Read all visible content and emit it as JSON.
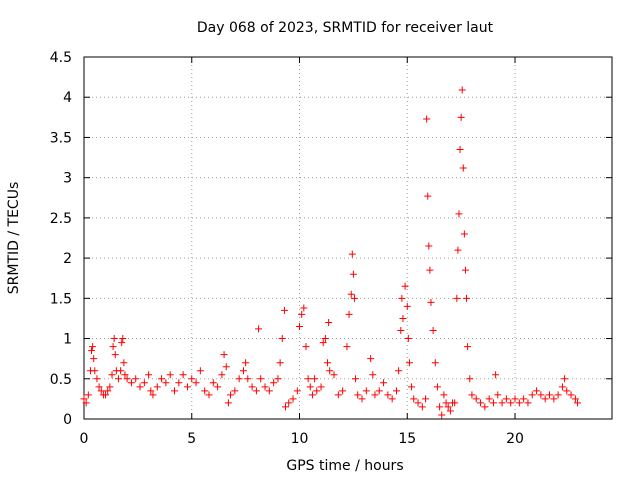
{
  "chart_data": {
    "type": "scatter",
    "title": "Day 068 of 2023, SRMTID for receiver laut",
    "xlabel": "GPS time / hours",
    "ylabel": "SRMTID / TECUs",
    "xlim": [
      0,
      24.5
    ],
    "ylim": [
      0,
      4.5
    ],
    "x_ticks": [
      0,
      5,
      10,
      15,
      20
    ],
    "x_tick_labels": [
      "0",
      "5",
      "10",
      "15",
      "20"
    ],
    "y_ticks": [
      0,
      0.5,
      1,
      1.5,
      2,
      2.5,
      3,
      3.5,
      4,
      4.5
    ],
    "y_tick_labels": [
      "0",
      "0.5",
      "1",
      "1.5",
      "2",
      "2.5",
      "3",
      "3.5",
      "4",
      "4.5"
    ],
    "grid": true,
    "marker": "plus",
    "color": "#ff0000",
    "series": [
      {
        "name": "SRMTID",
        "points": [
          [
            0.0,
            0.25
          ],
          [
            0.1,
            0.2
          ],
          [
            0.2,
            0.3
          ],
          [
            0.3,
            0.6
          ],
          [
            0.35,
            0.85
          ],
          [
            0.4,
            0.9
          ],
          [
            0.45,
            0.75
          ],
          [
            0.5,
            0.6
          ],
          [
            0.6,
            0.5
          ],
          [
            0.7,
            0.4
          ],
          [
            0.8,
            0.35
          ],
          [
            0.9,
            0.3
          ],
          [
            1.0,
            0.3
          ],
          [
            1.1,
            0.35
          ],
          [
            1.2,
            0.4
          ],
          [
            1.3,
            0.55
          ],
          [
            1.35,
            0.9
          ],
          [
            1.4,
            1.0
          ],
          [
            1.45,
            0.8
          ],
          [
            1.5,
            0.6
          ],
          [
            1.6,
            0.5
          ],
          [
            1.7,
            0.6
          ],
          [
            1.75,
            0.95
          ],
          [
            1.8,
            1.0
          ],
          [
            1.85,
            0.7
          ],
          [
            1.9,
            0.55
          ],
          [
            2.0,
            0.5
          ],
          [
            2.2,
            0.45
          ],
          [
            2.4,
            0.5
          ],
          [
            2.6,
            0.4
          ],
          [
            2.8,
            0.45
          ],
          [
            3.0,
            0.55
          ],
          [
            3.1,
            0.35
          ],
          [
            3.2,
            0.3
          ],
          [
            3.4,
            0.4
          ],
          [
            3.6,
            0.5
          ],
          [
            3.8,
            0.45
          ],
          [
            4.0,
            0.55
          ],
          [
            4.2,
            0.35
          ],
          [
            4.4,
            0.45
          ],
          [
            4.6,
            0.55
          ],
          [
            4.8,
            0.4
          ],
          [
            5.0,
            0.5
          ],
          [
            5.2,
            0.45
          ],
          [
            5.4,
            0.6
          ],
          [
            5.6,
            0.35
          ],
          [
            5.8,
            0.3
          ],
          [
            6.0,
            0.45
          ],
          [
            6.2,
            0.4
          ],
          [
            6.4,
            0.55
          ],
          [
            6.5,
            0.8
          ],
          [
            6.6,
            0.65
          ],
          [
            6.7,
            0.2
          ],
          [
            6.8,
            0.3
          ],
          [
            7.0,
            0.35
          ],
          [
            7.2,
            0.5
          ],
          [
            7.4,
            0.6
          ],
          [
            7.5,
            0.7
          ],
          [
            7.6,
            0.5
          ],
          [
            7.8,
            0.4
          ],
          [
            8.0,
            0.35
          ],
          [
            8.1,
            1.12
          ],
          [
            8.2,
            0.5
          ],
          [
            8.4,
            0.4
          ],
          [
            8.6,
            0.35
          ],
          [
            8.8,
            0.45
          ],
          [
            9.0,
            0.5
          ],
          [
            9.1,
            0.7
          ],
          [
            9.2,
            1.0
          ],
          [
            9.3,
            1.35
          ],
          [
            9.35,
            0.15
          ],
          [
            9.5,
            0.2
          ],
          [
            9.7,
            0.25
          ],
          [
            9.9,
            0.35
          ],
          [
            10.0,
            1.15
          ],
          [
            10.1,
            1.3
          ],
          [
            10.2,
            1.38
          ],
          [
            10.3,
            0.9
          ],
          [
            10.4,
            0.5
          ],
          [
            10.5,
            0.4
          ],
          [
            10.6,
            0.3
          ],
          [
            10.7,
            0.5
          ],
          [
            10.8,
            0.35
          ],
          [
            11.0,
            0.4
          ],
          [
            11.1,
            0.95
          ],
          [
            11.2,
            1.0
          ],
          [
            11.3,
            0.7
          ],
          [
            11.35,
            1.2
          ],
          [
            11.4,
            0.6
          ],
          [
            11.6,
            0.55
          ],
          [
            11.8,
            0.3
          ],
          [
            12.0,
            0.35
          ],
          [
            12.2,
            0.9
          ],
          [
            12.3,
            1.3
          ],
          [
            12.4,
            1.55
          ],
          [
            12.45,
            2.05
          ],
          [
            12.5,
            1.8
          ],
          [
            12.55,
            1.5
          ],
          [
            12.6,
            0.5
          ],
          [
            12.7,
            0.3
          ],
          [
            12.9,
            0.25
          ],
          [
            13.1,
            0.35
          ],
          [
            13.3,
            0.75
          ],
          [
            13.4,
            0.55
          ],
          [
            13.5,
            0.3
          ],
          [
            13.7,
            0.35
          ],
          [
            13.9,
            0.45
          ],
          [
            14.1,
            0.3
          ],
          [
            14.3,
            0.25
          ],
          [
            14.5,
            0.35
          ],
          [
            14.6,
            0.6
          ],
          [
            14.7,
            1.1
          ],
          [
            14.75,
            1.5
          ],
          [
            14.8,
            1.25
          ],
          [
            14.9,
            1.65
          ],
          [
            15.0,
            1.4
          ],
          [
            15.05,
            1.0
          ],
          [
            15.1,
            0.7
          ],
          [
            15.2,
            0.4
          ],
          [
            15.3,
            0.25
          ],
          [
            15.5,
            0.2
          ],
          [
            15.7,
            0.15
          ],
          [
            15.85,
            0.25
          ],
          [
            15.9,
            3.73
          ],
          [
            15.95,
            2.77
          ],
          [
            16.0,
            2.15
          ],
          [
            16.05,
            1.85
          ],
          [
            16.1,
            1.45
          ],
          [
            16.2,
            1.1
          ],
          [
            16.3,
            0.7
          ],
          [
            16.4,
            0.4
          ],
          [
            16.5,
            0.15
          ],
          [
            16.6,
            0.05
          ],
          [
            16.7,
            0.3
          ],
          [
            16.8,
            0.2
          ],
          [
            16.9,
            0.15
          ],
          [
            17.0,
            0.1
          ],
          [
            17.1,
            0.2
          ],
          [
            17.2,
            0.2
          ],
          [
            17.3,
            1.5
          ],
          [
            17.35,
            2.1
          ],
          [
            17.4,
            2.55
          ],
          [
            17.45,
            3.35
          ],
          [
            17.5,
            3.75
          ],
          [
            17.55,
            4.09
          ],
          [
            17.6,
            3.12
          ],
          [
            17.65,
            2.3
          ],
          [
            17.7,
            1.85
          ],
          [
            17.75,
            1.5
          ],
          [
            17.8,
            0.9
          ],
          [
            17.9,
            0.5
          ],
          [
            18.0,
            0.3
          ],
          [
            18.2,
            0.25
          ],
          [
            18.4,
            0.2
          ],
          [
            18.6,
            0.15
          ],
          [
            18.8,
            0.25
          ],
          [
            19.0,
            0.2
          ],
          [
            19.1,
            0.55
          ],
          [
            19.2,
            0.3
          ],
          [
            19.4,
            0.2
          ],
          [
            19.6,
            0.25
          ],
          [
            19.8,
            0.2
          ],
          [
            20.0,
            0.25
          ],
          [
            20.2,
            0.2
          ],
          [
            20.4,
            0.25
          ],
          [
            20.6,
            0.2
          ],
          [
            20.8,
            0.3
          ],
          [
            21.0,
            0.35
          ],
          [
            21.2,
            0.3
          ],
          [
            21.4,
            0.25
          ],
          [
            21.6,
            0.3
          ],
          [
            21.8,
            0.25
          ],
          [
            22.0,
            0.3
          ],
          [
            22.2,
            0.4
          ],
          [
            22.3,
            0.5
          ],
          [
            22.4,
            0.35
          ],
          [
            22.6,
            0.3
          ],
          [
            22.8,
            0.25
          ],
          [
            22.9,
            0.2
          ]
        ]
      }
    ]
  }
}
